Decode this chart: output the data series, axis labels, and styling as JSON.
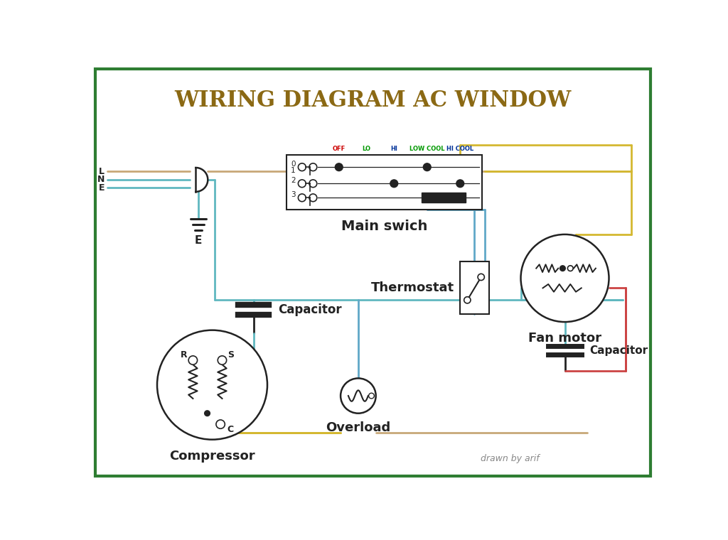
{
  "title": "WIRING DIAGRAM AC WINDOW",
  "title_color": "#8B6914",
  "bg_color": "#FFFFFF",
  "border_color": "#2E7D32",
  "border_lw": 3,
  "brown": "#C8A878",
  "teal": "#60B8C0",
  "yellow": "#D4B830",
  "blue": "#60A8C8",
  "red": "#CC4444",
  "dark": "#222222",
  "watermark": "drawn by arif",
  "switch_pos_labels": [
    "OFF",
    "LO",
    "HI",
    "LOW COOL",
    "HI COOL"
  ],
  "switch_pos_colors": [
    "#CC0000",
    "#009900",
    "#003399",
    "#009900",
    "#003399"
  ]
}
